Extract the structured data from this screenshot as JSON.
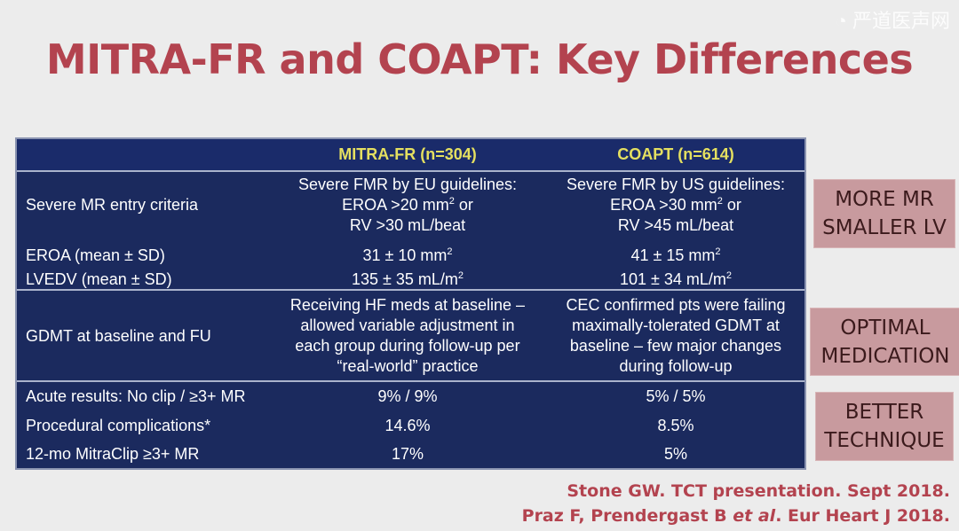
{
  "title": "MITRA-FR and COAPT: Key Differences",
  "table": {
    "headers": [
      "",
      "MITRA-FR (n=304)",
      "COAPT (n=614)"
    ],
    "entry": {
      "label": "Severe MR entry criteria",
      "mitra": [
        "Severe FMR by EU guidelines:",
        "EROA >20 mm",
        "2",
        " or",
        "RV >30 mL/beat"
      ],
      "coapt": [
        "Severe FMR by US guidelines:",
        "EROA >30 mm",
        "2",
        " or",
        "RV >45 mL/beat"
      ]
    },
    "eroa": {
      "label": "EROA (mean ± SD)",
      "mitra": "31 ± 10 mm",
      "coapt": "41 ± 15 mm",
      "sup": "2"
    },
    "lvedv": {
      "label": "LVEDV (mean ± SD)",
      "mitra": "135 ± 35 mL/m",
      "coapt": "101 ± 34 mL/m",
      "sup": "2"
    },
    "gdmt": {
      "label": "GDMT at baseline and FU",
      "mitra": [
        "Receiving HF meds at baseline –",
        "allowed variable adjustment in",
        "each group during follow-up per",
        "“real-world” practice"
      ],
      "coapt": [
        "CEC confirmed pts were failing",
        "maximally-tolerated GDMT at",
        "baseline – few major changes",
        "during follow-up"
      ]
    },
    "acute": {
      "label": "Acute results: No clip / ≥3+ MR",
      "mitra": "9% / 9%",
      "coapt": "5% / 5%"
    },
    "proc": {
      "label": "Procedural complications*",
      "mitra": "14.6%",
      "coapt": "8.5%"
    },
    "mr12": {
      "label": "12-mo MitraClip ≥3+ MR",
      "mitra": "17%",
      "coapt": "5%"
    }
  },
  "callouts": [
    [
      "MORE MR",
      "SMALLER LV"
    ],
    [
      "OPTIMAL",
      "MEDICATION"
    ],
    [
      "BETTER",
      "TECHNIQUE"
    ]
  ],
  "references": [
    "Stone GW.  TCT presentation. Sept 2018.",
    "Praz F, Prendergast B ",
    "et al",
    ".  Eur Heart J 2018."
  ],
  "watermark": "严道医声网",
  "colors": {
    "title": "#b3434f",
    "table_bg": "#1b2a5e",
    "header_text": "#e5e060",
    "callout_bg": "#c89a9e"
  }
}
